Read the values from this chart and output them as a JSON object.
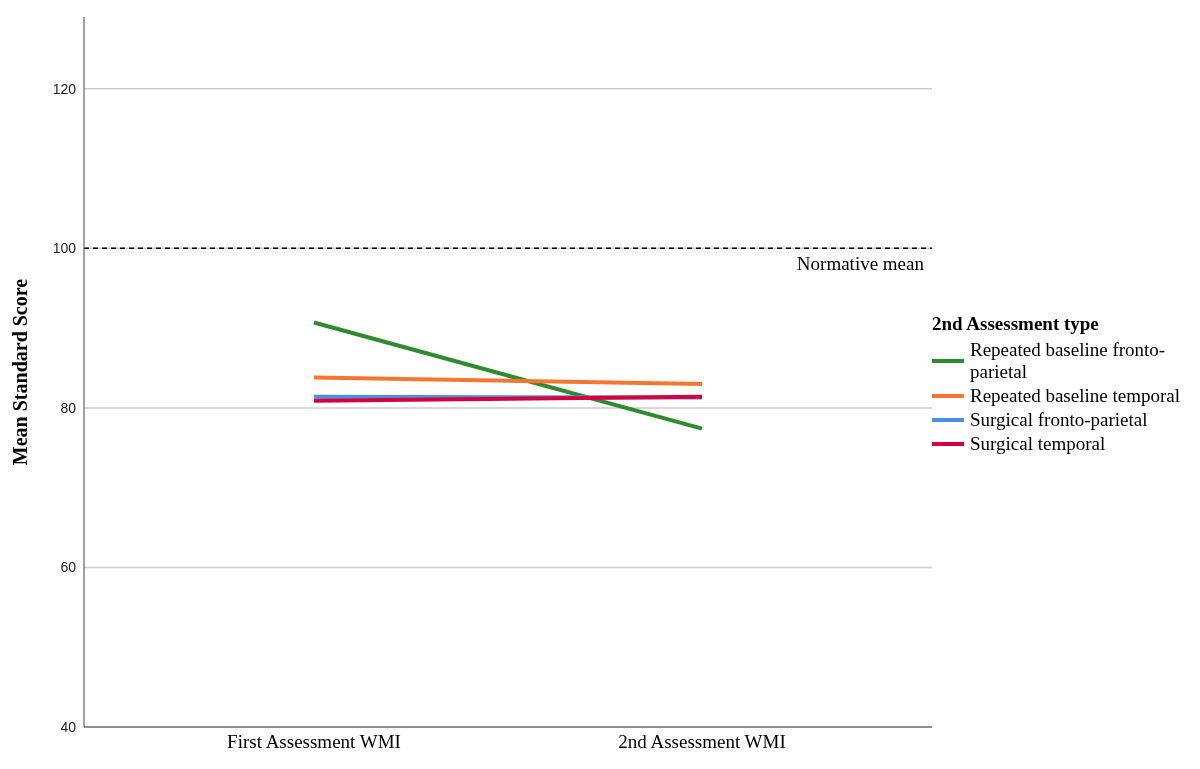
{
  "chart_data": {
    "type": "line",
    "ylabel": "Mean Standard Score",
    "legend_title": "2nd Assessment type",
    "categories": [
      "First Assessment WMI",
      "2nd Assessment WMI"
    ],
    "series": [
      {
        "name": "Repeated baseline fronto-parietal",
        "color": "#2e8b2e",
        "values": [
          90.7,
          77.4
        ]
      },
      {
        "name": "Repeated baseline temporal",
        "color": "#f5772f",
        "values": [
          83.8,
          83.0
        ]
      },
      {
        "name": "Surgical fronto-parietal",
        "color": "#4a90e2",
        "values": [
          81.4,
          81.3
        ]
      },
      {
        "name": "Surgical temporal",
        "color": "#d6003c",
        "values": [
          80.9,
          81.4
        ]
      }
    ],
    "ylim": [
      40,
      129
    ],
    "yticks": [
      40,
      60,
      80,
      100,
      120
    ],
    "grid": "y",
    "legend": "right",
    "marker": "none",
    "line_style": "solid",
    "ref_lines": [
      {
        "axis": "y",
        "value": 100,
        "label": "Normative mean",
        "line_style": "dashed",
        "color": "#000000"
      }
    ]
  }
}
